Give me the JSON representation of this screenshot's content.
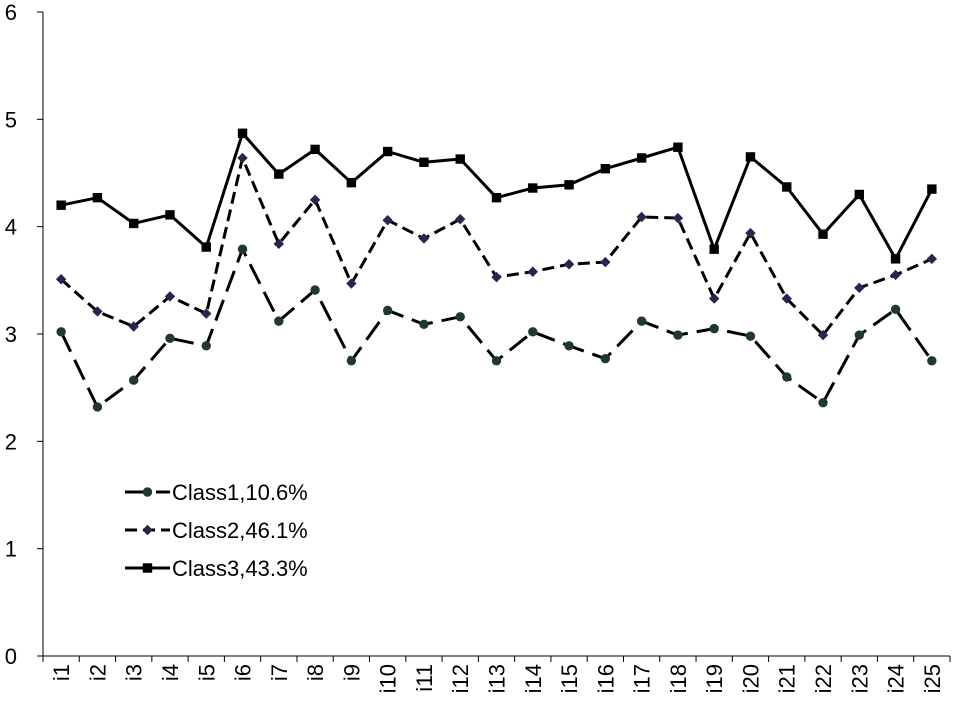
{
  "chart_data": {
    "type": "line",
    "title": "",
    "xlabel": "",
    "ylabel": "",
    "ylim": [
      0,
      6
    ],
    "yticks": [
      0,
      1,
      2,
      3,
      4,
      5,
      6
    ],
    "grid": false,
    "legend_position": "lower-left",
    "categories": [
      "i1",
      "i2",
      "i3",
      "i4",
      "i5",
      "i6",
      "i7",
      "i8",
      "i9",
      "i10",
      "i11",
      "i12",
      "i13",
      "i14",
      "i15",
      "i16",
      "i17",
      "i18",
      "i19",
      "i20",
      "i21",
      "i22",
      "i23",
      "i24",
      "i25"
    ],
    "series": [
      {
        "name": "Class1,10.6%",
        "line_style": "long-dash",
        "marker": "circle",
        "color": "#000000",
        "marker_color": "#1f3a2a",
        "values": [
          3.02,
          2.32,
          2.57,
          2.96,
          2.89,
          3.79,
          3.12,
          3.41,
          2.75,
          3.22,
          3.09,
          3.16,
          2.75,
          3.02,
          2.89,
          2.77,
          3.12,
          2.99,
          3.05,
          2.98,
          2.6,
          2.36,
          2.99,
          3.23,
          2.75
        ]
      },
      {
        "name": "Class2,46.1%",
        "line_style": "short-dash",
        "marker": "diamond",
        "color": "#000000",
        "marker_color": "#2b2450",
        "values": [
          3.51,
          3.21,
          3.07,
          3.35,
          3.19,
          4.64,
          3.84,
          4.25,
          3.47,
          4.06,
          3.89,
          4.07,
          3.53,
          3.58,
          3.65,
          3.67,
          4.09,
          4.08,
          3.33,
          3.94,
          3.33,
          2.99,
          3.43,
          3.55,
          3.7
        ]
      },
      {
        "name": "Class3,43.3%",
        "line_style": "solid",
        "marker": "square",
        "color": "#000000",
        "marker_color": "#000000",
        "values": [
          4.2,
          4.27,
          4.03,
          4.11,
          3.81,
          4.87,
          4.49,
          4.72,
          4.41,
          4.7,
          4.6,
          4.63,
          4.27,
          4.36,
          4.39,
          4.54,
          4.64,
          4.74,
          3.79,
          4.65,
          4.37,
          3.93,
          4.3,
          3.7,
          4.35
        ]
      }
    ]
  }
}
